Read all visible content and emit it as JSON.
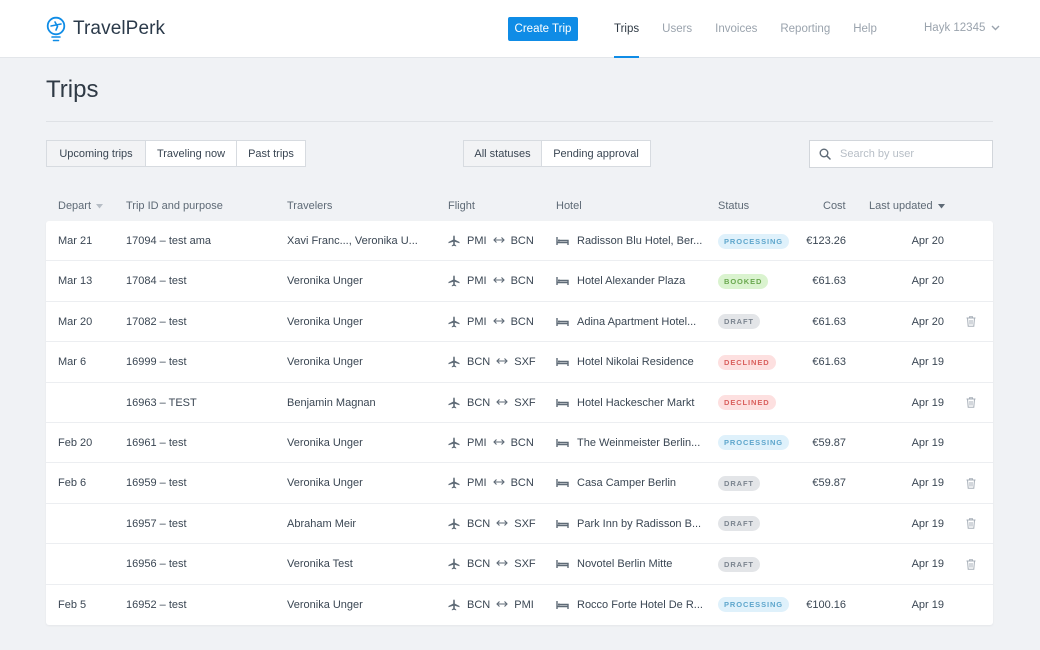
{
  "brand": {
    "name": "TravelPerk",
    "accent": "#0f8ce6"
  },
  "header": {
    "create_button": "Create Trip",
    "nav": [
      {
        "label": "Trips",
        "active": true
      },
      {
        "label": "Users",
        "active": false
      },
      {
        "label": "Invoices",
        "active": false
      },
      {
        "label": "Reporting",
        "active": false
      },
      {
        "label": "Help",
        "active": false
      }
    ],
    "user": "Hayk 12345"
  },
  "page": {
    "title": "Trips"
  },
  "filters": {
    "time": [
      "Upcoming trips",
      "Traveling now",
      "Past trips"
    ],
    "status": [
      "All statuses",
      "Pending approval"
    ],
    "search_placeholder": "Search by user"
  },
  "table": {
    "columns": {
      "depart": "Depart",
      "trip": "Trip ID and purpose",
      "travelers": "Travelers",
      "flight": "Flight",
      "hotel": "Hotel",
      "status": "Status",
      "cost": "Cost",
      "updated": "Last updated"
    },
    "rows": [
      {
        "depart": "Mar 21",
        "trip": "17094 – test ama",
        "travelers": "Xavi Franc..., Veronika U...",
        "from": "PMI",
        "to": "BCN",
        "hotel": "Radisson Blu Hotel, Ber...",
        "status": "PROCESSING",
        "cost": "€123.26",
        "updated": "Apr 20",
        "deletable": false
      },
      {
        "depart": "Mar 13",
        "trip": "17084 – test",
        "travelers": "Veronika Unger",
        "from": "PMI",
        "to": "BCN",
        "hotel": "Hotel Alexander Plaza",
        "status": "BOOKED",
        "cost": "€61.63",
        "updated": "Apr 20",
        "deletable": false
      },
      {
        "depart": "Mar 20",
        "trip": "17082 – test",
        "travelers": "Veronika Unger",
        "from": "PMI",
        "to": "BCN",
        "hotel": "Adina Apartment Hotel...",
        "status": "DRAFT",
        "cost": "€61.63",
        "updated": "Apr 20",
        "deletable": true
      },
      {
        "depart": "Mar 6",
        "trip": "16999 – test",
        "travelers": "Veronika Unger",
        "from": "BCN",
        "to": "SXF",
        "hotel": "Hotel Nikolai Residence",
        "status": "DECLINED",
        "cost": "€61.63",
        "updated": "Apr 19",
        "deletable": false
      },
      {
        "depart": "",
        "trip": "16963 – TEST",
        "travelers": "Benjamin Magnan",
        "from": "BCN",
        "to": "SXF",
        "hotel": "Hotel Hackescher Markt",
        "status": "DECLINED",
        "cost": "",
        "updated": "Apr 19",
        "deletable": true
      },
      {
        "depart": "Feb 20",
        "trip": "16961 – test",
        "travelers": "Veronika Unger",
        "from": "PMI",
        "to": "BCN",
        "hotel": "The Weinmeister Berlin...",
        "status": "PROCESSING",
        "cost": "€59.87",
        "updated": "Apr 19",
        "deletable": false
      },
      {
        "depart": "Feb 6",
        "trip": "16959 – test",
        "travelers": "Veronika Unger",
        "from": "PMI",
        "to": "BCN",
        "hotel": "Casa Camper Berlin",
        "status": "DRAFT",
        "cost": "€59.87",
        "updated": "Apr 19",
        "deletable": true
      },
      {
        "depart": "",
        "trip": "16957 – test",
        "travelers": "Abraham Meir",
        "from": "BCN",
        "to": "SXF",
        "hotel": "Park Inn by Radisson B...",
        "status": "DRAFT",
        "cost": "",
        "updated": "Apr 19",
        "deletable": true
      },
      {
        "depart": "",
        "trip": "16956 – test",
        "travelers": "Veronika Test",
        "from": "BCN",
        "to": "SXF",
        "hotel": "Novotel Berlin Mitte",
        "status": "DRAFT",
        "cost": "",
        "updated": "Apr 19",
        "deletable": true
      },
      {
        "depart": "Feb 5",
        "trip": "16952 – test",
        "travelers": "Veronika Unger",
        "from": "BCN",
        "to": "PMI",
        "hotel": "Rocco Forte Hotel De R...",
        "status": "PROCESSING",
        "cost": "€100.16",
        "updated": "Apr 19",
        "deletable": false
      }
    ]
  }
}
